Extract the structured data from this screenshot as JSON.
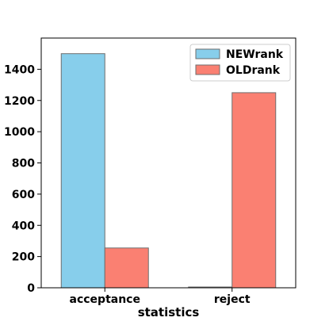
{
  "chart_data": {
    "type": "bar",
    "title": "",
    "xlabel": "statistics",
    "ylabel": "",
    "categories": [
      "acceptance",
      "reject"
    ],
    "series": [
      {
        "name": "NEWrank",
        "values": [
          1500,
          5
        ],
        "color": "#87CEEB"
      },
      {
        "name": "OLDrank",
        "values": [
          255,
          1250
        ],
        "color": "#FA8072"
      }
    ],
    "ylim": [
      0,
      1600
    ],
    "yticks": [
      0,
      200,
      400,
      600,
      800,
      1000,
      1200,
      1400
    ],
    "grid": false,
    "legend_position": "top-right"
  }
}
